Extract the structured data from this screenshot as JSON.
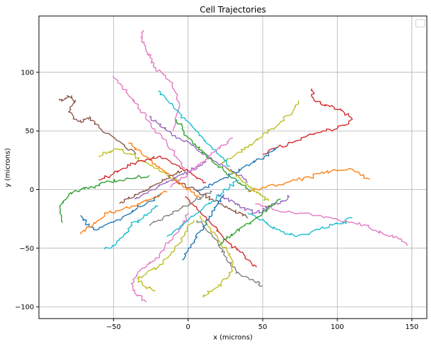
{
  "chart_data": {
    "type": "line",
    "title": "Cell Trajectories",
    "xlabel": "x (microns)",
    "ylabel": "y (microns)",
    "xlim": [
      -100,
      160
    ],
    "ylim": [
      -110,
      148
    ],
    "xticks": [
      -50,
      0,
      50,
      100,
      150
    ],
    "yticks": [
      -100,
      -50,
      0,
      50,
      100
    ],
    "xtick_labels": [
      "−50",
      "0",
      "50",
      "100",
      "150"
    ],
    "ytick_labels": [
      "−100",
      "−50",
      "0",
      "50",
      "100"
    ],
    "grid": true,
    "legend": {
      "location": "top-right",
      "entries": []
    },
    "palette": [
      "#1f77b4",
      "#ff7f0e",
      "#2ca02c",
      "#d62728",
      "#9467bd",
      "#8c564b",
      "#e377c2",
      "#7f7f7f",
      "#bcbd22",
      "#17becf"
    ],
    "series": [
      {
        "color": "#e377c2",
        "x": [
          -30,
          -31,
          -28,
          -25,
          -22,
          -18,
          -12,
          -8,
          -6,
          -10
        ],
        "y": [
          136,
          128,
          118,
          112,
          104,
          100,
          92,
          82,
          70,
          50
        ]
      },
      {
        "color": "#8c564b",
        "x": [
          -86,
          -82,
          -78,
          -76,
          -80,
          -75,
          -70,
          -66,
          -62,
          -55,
          -45,
          -35
        ],
        "y": [
          76,
          78,
          80,
          74,
          66,
          60,
          58,
          62,
          56,
          48,
          40,
          30
        ]
      },
      {
        "color": "#d62728",
        "x": [
          83,
          84,
          90,
          98,
          105,
          110,
          100,
          90,
          80,
          70,
          60,
          50
        ],
        "y": [
          86,
          78,
          72,
          70,
          65,
          60,
          52,
          50,
          46,
          40,
          36,
          30
        ]
      },
      {
        "color": "#e377c2",
        "x": [
          147,
          142,
          135,
          126,
          118,
          108,
          98,
          88,
          75,
          60,
          45
        ],
        "y": [
          -48,
          -42,
          -40,
          -35,
          -30,
          -28,
          -25,
          -22,
          -20,
          -18,
          -12
        ]
      },
      {
        "color": "#ff7f0e",
        "x": [
          122,
          116,
          108,
          100,
          90,
          82,
          72,
          62,
          50,
          40
        ],
        "y": [
          9,
          12,
          18,
          16,
          15,
          10,
          8,
          4,
          2,
          -2
        ]
      },
      {
        "color": "#e377c2",
        "x": [
          -28,
          -36,
          -38,
          -34,
          -28,
          -22,
          -16,
          -10,
          -4,
          0
        ],
        "y": [
          -96,
          -88,
          -80,
          -72,
          -66,
          -60,
          -50,
          -40,
          -30,
          -20
        ]
      },
      {
        "color": "#bcbd22",
        "x": [
          -22,
          -30,
          -34,
          -28,
          -20,
          -12,
          -6,
          -2,
          4
        ],
        "y": [
          -86,
          -82,
          -76,
          -72,
          -66,
          -56,
          -46,
          -36,
          -26
        ]
      },
      {
        "color": "#17becf",
        "x": [
          -56,
          -50,
          -46,
          -42,
          -38,
          -32,
          -26,
          -20
        ],
        "y": [
          -51,
          -48,
          -42,
          -38,
          -30,
          -26,
          -20,
          -14
        ]
      },
      {
        "color": "#2ca02c",
        "x": [
          -84,
          -86,
          -80,
          -72,
          -64,
          -56,
          -46,
          -36,
          -26
        ],
        "y": [
          -28,
          -14,
          -4,
          0,
          2,
          6,
          8,
          10,
          12
        ]
      },
      {
        "color": "#1f77b4",
        "x": [
          -72,
          -68,
          -60,
          -50,
          -42,
          -34,
          -26,
          -18
        ],
        "y": [
          -22,
          -30,
          -34,
          -28,
          -22,
          -16,
          -10,
          -4
        ]
      },
      {
        "color": "#bcbd22",
        "x": [
          -60,
          -54,
          -46,
          -38,
          -30,
          -22,
          -14,
          -6
        ],
        "y": [
          28,
          32,
          34,
          30,
          24,
          18,
          12,
          6
        ]
      },
      {
        "color": "#9467bd",
        "x": [
          -26,
          -20,
          -14,
          -6,
          2,
          10,
          18,
          26,
          34,
          40
        ],
        "y": [
          62,
          56,
          50,
          44,
          38,
          30,
          24,
          18,
          12,
          6
        ]
      },
      {
        "color": "#bcbd22",
        "x": [
          74,
          70,
          62,
          56,
          50,
          44,
          38,
          30,
          22
        ],
        "y": [
          76,
          66,
          58,
          52,
          46,
          40,
          34,
          28,
          22
        ]
      },
      {
        "color": "#17becf",
        "x": [
          110,
          104,
          96,
          88,
          80,
          72,
          64,
          56,
          48,
          40
        ],
        "y": [
          -24,
          -28,
          -30,
          -34,
          -38,
          -40,
          -36,
          -32,
          -26,
          -20
        ]
      },
      {
        "color": "#d62728",
        "x": [
          46,
          40,
          34,
          28,
          22,
          16,
          10,
          4,
          -2
        ],
        "y": [
          -66,
          -60,
          -52,
          -46,
          -38,
          -30,
          -22,
          -14,
          -6
        ]
      },
      {
        "color": "#7f7f7f",
        "x": [
          50,
          44,
          36,
          30,
          26,
          22,
          18,
          12,
          6
        ],
        "y": [
          -82,
          -78,
          -74,
          -66,
          -58,
          -50,
          -42,
          -34,
          -26
        ]
      },
      {
        "color": "#bcbd22",
        "x": [
          10,
          16,
          22,
          28,
          30,
          26,
          20,
          14,
          8
        ],
        "y": [
          -92,
          -86,
          -80,
          -72,
          -62,
          -52,
          -42,
          -32,
          -22
        ]
      },
      {
        "color": "#ff7f0e",
        "x": [
          -72,
          -66,
          -60,
          -54,
          -46,
          -38,
          -30,
          -22,
          -14
        ],
        "y": [
          -38,
          -32,
          -26,
          -20,
          -18,
          -14,
          -10,
          -6,
          -2
        ]
      },
      {
        "color": "#2ca02c",
        "x": [
          -8,
          -4,
          0,
          6,
          12,
          18,
          24,
          30,
          36,
          42
        ],
        "y": [
          60,
          52,
          44,
          36,
          30,
          22,
          16,
          10,
          4,
          -2
        ]
      },
      {
        "color": "#17becf",
        "x": [
          -20,
          -14,
          -8,
          -2,
          4,
          10,
          16,
          22,
          28
        ],
        "y": [
          84,
          76,
          68,
          60,
          52,
          44,
          36,
          28,
          20
        ]
      },
      {
        "color": "#e377c2",
        "x": [
          -50,
          -44,
          -38,
          -32,
          -26,
          -20,
          -14,
          -8,
          -2
        ],
        "y": [
          97,
          88,
          78,
          68,
          58,
          48,
          38,
          28,
          18
        ]
      },
      {
        "color": "#1f77b4",
        "x": [
          60,
          54,
          48,
          42,
          36,
          30,
          24,
          18,
          12,
          6
        ],
        "y": [
          36,
          30,
          26,
          22,
          18,
          14,
          10,
          6,
          2,
          -2
        ]
      },
      {
        "color": "#9467bd",
        "x": [
          68,
          62,
          56,
          50,
          44,
          38,
          32,
          26,
          20
        ],
        "y": [
          -6,
          -10,
          -14,
          -18,
          -20,
          -16,
          -12,
          -8,
          -4
        ]
      },
      {
        "color": "#8c564b",
        "x": [
          40,
          34,
          28,
          22,
          16,
          10,
          4,
          -2,
          -8
        ],
        "y": [
          -24,
          -20,
          -16,
          -12,
          -8,
          -4,
          0,
          4,
          8
        ]
      },
      {
        "color": "#ff7f0e",
        "x": [
          -40,
          -34,
          -28,
          -22,
          -16,
          -10,
          -4,
          2,
          8
        ],
        "y": [
          40,
          34,
          28,
          22,
          16,
          10,
          4,
          -2,
          -8
        ]
      },
      {
        "color": "#d62728",
        "x": [
          -60,
          -52,
          -44,
          -36,
          -28,
          -20,
          -12,
          -4,
          4,
          12
        ],
        "y": [
          8,
          12,
          18,
          22,
          26,
          28,
          24,
          18,
          12,
          6
        ]
      },
      {
        "color": "#2ca02c",
        "x": [
          20,
          26,
          32,
          38,
          44,
          50,
          56,
          62
        ],
        "y": [
          -48,
          -42,
          -36,
          -30,
          -26,
          -20,
          -14,
          -8
        ]
      },
      {
        "color": "#17becf",
        "x": [
          -14,
          -8,
          -2,
          4,
          10,
          16,
          22,
          28,
          34
        ],
        "y": [
          -40,
          -34,
          -28,
          -22,
          -16,
          -10,
          -4,
          2,
          8
        ]
      },
      {
        "color": "#bcbd22",
        "x": [
          26,
          30,
          34,
          38,
          42,
          46,
          50,
          54
        ],
        "y": [
          18,
          14,
          10,
          6,
          2,
          -2,
          -6,
          -10
        ]
      },
      {
        "color": "#7f7f7f",
        "x": [
          -26,
          -20,
          -14,
          -8,
          -2,
          4,
          10,
          16
        ],
        "y": [
          -30,
          -26,
          -22,
          -18,
          -14,
          -10,
          -6,
          -2
        ]
      },
      {
        "color": "#1f77b4",
        "x": [
          -4,
          0,
          4,
          8,
          12,
          16,
          20,
          24
        ],
        "y": [
          -60,
          -52,
          -44,
          -36,
          -28,
          -20,
          -12,
          -4
        ]
      },
      {
        "color": "#9467bd",
        "x": [
          -36,
          -30,
          -24,
          -18,
          -12,
          -6,
          0,
          6,
          12
        ],
        "y": [
          -8,
          -4,
          0,
          4,
          8,
          12,
          16,
          20,
          24
        ]
      },
      {
        "color": "#e377c2",
        "x": [
          30,
          24,
          18,
          12,
          6,
          0,
          -6,
          -12
        ],
        "y": [
          44,
          38,
          32,
          26,
          20,
          14,
          8,
          2
        ]
      },
      {
        "color": "#8c564b",
        "x": [
          -46,
          -40,
          -34,
          -28,
          -22,
          -16,
          -10,
          -4
        ],
        "y": [
          -12,
          -8,
          -4,
          0,
          4,
          8,
          12,
          16
        ]
      }
    ]
  }
}
